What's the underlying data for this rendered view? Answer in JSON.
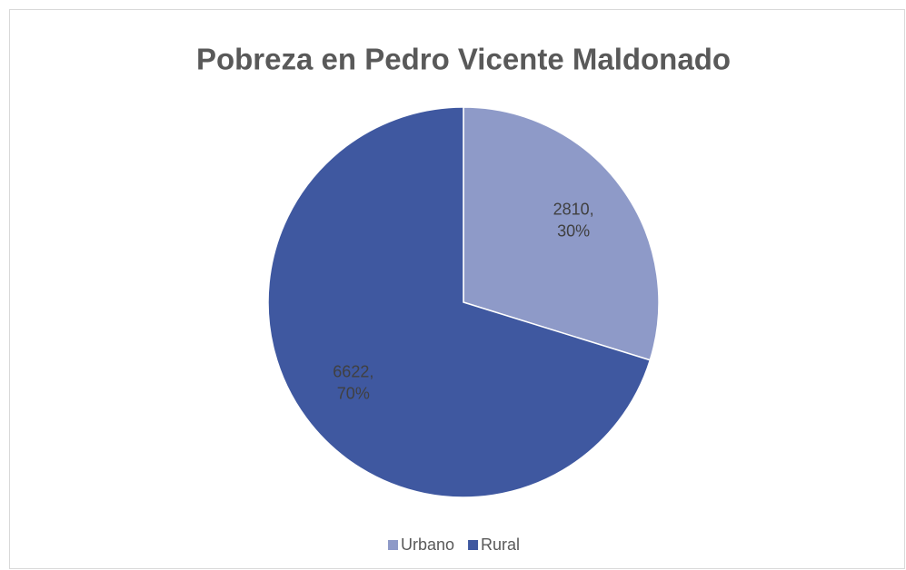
{
  "chart_data": {
    "type": "pie",
    "title": "Pobreza en Pedro Vicente Maldonado",
    "categories": [
      "Urbano",
      "Rural"
    ],
    "values": [
      2810,
      6622
    ],
    "value_labels": [
      "2810, 30%",
      "6622, 70%"
    ],
    "colors": [
      "#8e9ac8",
      "#3f58a0"
    ],
    "legend": "bottom"
  }
}
